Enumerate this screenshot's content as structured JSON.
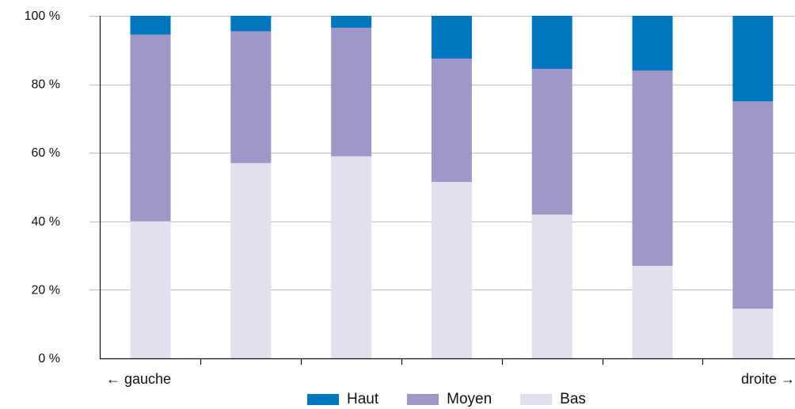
{
  "chart_data": {
    "type": "bar",
    "stacked": true,
    "categories": [
      "",
      "",
      "",
      "",
      "",
      "",
      ""
    ],
    "series": [
      {
        "name": "Bas",
        "color": "#e2e0ef",
        "values": [
          40,
          57,
          59,
          51.5,
          42,
          27,
          14.5
        ]
      },
      {
        "name": "Moyen",
        "color": "#a196c8",
        "values": [
          54.5,
          38.5,
          37.5,
          36,
          42.5,
          57,
          60.5
        ]
      },
      {
        "name": "Haut",
        "color": "#0076bf",
        "values": [
          5.5,
          4.5,
          3.5,
          12.5,
          15.5,
          16,
          25
        ]
      }
    ],
    "yticks": [
      "0 %",
      "20 %",
      "40 %",
      "60 %",
      "80 %",
      "100 %"
    ],
    "ytick_values": [
      0,
      20,
      40,
      60,
      80,
      100
    ],
    "ylim": [
      0,
      100
    ],
    "x_start_label": "← gauche",
    "x_end_label": "droite →",
    "legend_order": [
      "Haut",
      "Moyen",
      "Bas"
    ],
    "legend_position": "bottom-center",
    "grid": true,
    "gridline_color": "#bdbdbd"
  }
}
